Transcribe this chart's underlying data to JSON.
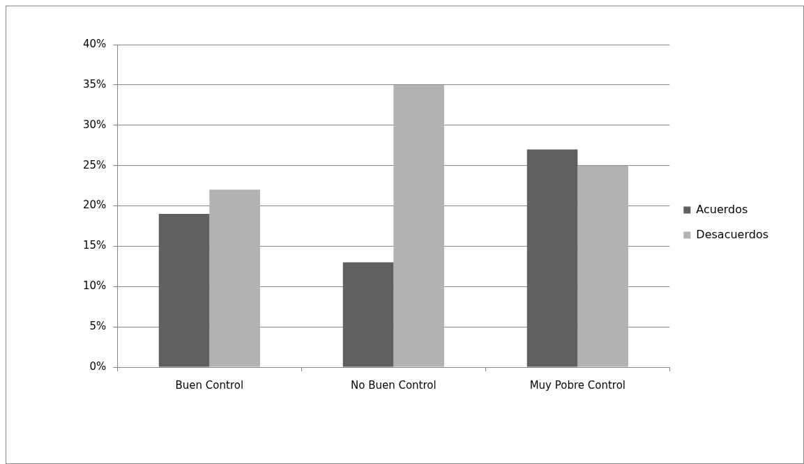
{
  "chart_data": {
    "type": "bar",
    "categories": [
      "Buen Control",
      "No Buen Control",
      "Muy Pobre Control"
    ],
    "series": [
      {
        "name": "Acuerdos",
        "color": "#606060",
        "values": [
          19,
          13,
          27
        ]
      },
      {
        "name": "Desacuerdos",
        "color": "#b2b2b2",
        "values": [
          22,
          35,
          25
        ]
      }
    ],
    "ylim": [
      0,
      40
    ],
    "yticks": [
      {
        "value": 0,
        "label": "0%"
      },
      {
        "value": 5,
        "label": "5%"
      },
      {
        "value": 10,
        "label": "10%"
      },
      {
        "value": 15,
        "label": "15%"
      },
      {
        "value": 20,
        "label": "20%"
      },
      {
        "value": 25,
        "label": "25%"
      },
      {
        "value": 30,
        "label": "30%"
      },
      {
        "value": 35,
        "label": "35%"
      },
      {
        "value": 40,
        "label": "40%"
      }
    ],
    "grid": "y",
    "legend": "right"
  }
}
